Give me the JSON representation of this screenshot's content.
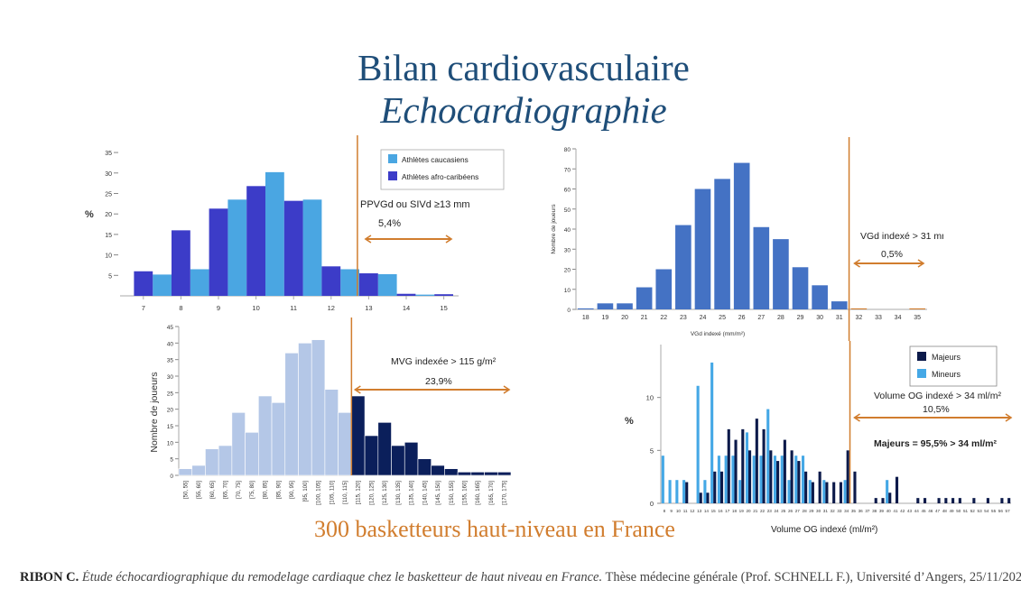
{
  "title": "Bilan cardiovasculaire",
  "title_italic": "Echocardiographie",
  "subtitle": "300 basketteurs haut-niveau en France",
  "footer": {
    "author": "RIBON C.",
    "work": "Étude échocardiographique du remodelage cardiaque chez le basketteur de haut niveau en France.",
    "rest": " Thèse médecine générale (Prof. SCHNELL F.), Université d’Angers, 25/11/202"
  },
  "colors": {
    "title": "#1f4e79",
    "accent": "#d17d2e",
    "threshold": "#d17d2e"
  },
  "chart_data": [
    {
      "id": "ppvgd",
      "type": "bar",
      "ylabel": "%",
      "ylim": [
        0,
        37
      ],
      "yticks": [
        5,
        10,
        15,
        20,
        25,
        30,
        35
      ],
      "xticks": [
        "7",
        "8",
        "9",
        "10",
        "11",
        "12",
        "13",
        "14",
        "15"
      ],
      "series": [
        {
          "name": "Athlètes caucasiens",
          "color": "#4aa6e2",
          "x": [
            7.5,
            8.5,
            9.5,
            10.5,
            11.5,
            12.5,
            13.5,
            14.5
          ],
          "values": [
            5.2,
            6.5,
            23.5,
            30.2,
            23.5,
            6.5,
            5.3,
            0.3
          ]
        },
        {
          "name": "Athlètes afro-caribéens",
          "color": "#3c3cc8",
          "x": [
            7,
            8,
            9,
            10,
            11,
            12,
            13,
            14,
            15
          ],
          "values": [
            6,
            16,
            21.3,
            26.8,
            23.2,
            7.2,
            5.5,
            0.5,
            0.4
          ]
        }
      ],
      "threshold_x": 12.7,
      "annotation": {
        "label": "PPVGd ou SIVd ≥13 mm",
        "value": "5,4%"
      },
      "legend": "top-right"
    },
    {
      "id": "vgd",
      "type": "bar",
      "ylabel": "Nombre de joueurs",
      "xlabel": "VGd indexé (mm/m²)",
      "ylim": [
        0,
        80
      ],
      "yticks": [
        0,
        10,
        20,
        30,
        40,
        50,
        60,
        70,
        80
      ],
      "categories": [
        "18",
        "19",
        "20",
        "21",
        "22",
        "23",
        "24",
        "25",
        "26",
        "27",
        "28",
        "29",
        "30",
        "31",
        "32",
        "33",
        "34",
        "35"
      ],
      "values": [
        0.5,
        3,
        3,
        11,
        20,
        42,
        60,
        65,
        73,
        41,
        35,
        21,
        12,
        4,
        0.5,
        0,
        0,
        0.5
      ],
      "color": "#4472c4",
      "threshold_after": "31",
      "annotation": {
        "label": "VGd indexé > 31 mm/m²",
        "value": "0,5%"
      }
    },
    {
      "id": "mvg",
      "type": "bar",
      "ylabel": "Nombre de joueurs",
      "ylim": [
        0,
        45
      ],
      "yticks": [
        0,
        5,
        10,
        15,
        20,
        25,
        30,
        35,
        40,
        45
      ],
      "categories": [
        "[50, 55]",
        "[55, 60]",
        "[60, 65]",
        "[65, 70]",
        "[70, 75]",
        "[75, 80]",
        "[80, 85]",
        "[85, 90]",
        "[90, 95]",
        "[95, 100]",
        "[100, 105]",
        "[105, 110]",
        "[110, 115]",
        "[115, 120]",
        "[120, 125]",
        "[125, 130]",
        "[130, 135]",
        "[135, 140]",
        "[140, 145]",
        "[145, 150]",
        "[150, 155]",
        "[155, 160]",
        "[160, 165]",
        "[165, 170]",
        "[170, 175]"
      ],
      "values": [
        2,
        3,
        8,
        9,
        19,
        13,
        24,
        22,
        37,
        40,
        41,
        26,
        19,
        24,
        12,
        16,
        9,
        10,
        5,
        3,
        2,
        1,
        1,
        1,
        1
      ],
      "color_below": "#b4c7e7",
      "color_above": "#0b1f5b",
      "threshold_after": "[110, 115]",
      "annotation": {
        "label": "MVG indexée > 115 g/m²",
        "value": "23,9%"
      }
    },
    {
      "id": "og",
      "type": "bar",
      "ylabel": "%",
      "xlabel": "Volume OG indexé (ml/m²)",
      "ylim": [
        0,
        15
      ],
      "yticks": [
        0,
        5,
        10
      ],
      "categories": [
        "8",
        "9",
        "10",
        "11",
        "12",
        "13",
        "14",
        "15",
        "16",
        "17",
        "18",
        "19",
        "20",
        "21",
        "22",
        "23",
        "24",
        "25",
        "26",
        "27",
        "28",
        "29",
        "30",
        "31",
        "32",
        "33",
        "34",
        "35",
        "36",
        "37",
        "38",
        "39",
        "40",
        "41",
        "42",
        "43",
        "44",
        "45",
        "46",
        "47",
        "48",
        "49",
        "50",
        "51",
        "52",
        "53",
        "54",
        "55",
        "56",
        "57"
      ],
      "series": [
        {
          "name": "Majeurs",
          "color": "#0c1a4a",
          "values": [
            0,
            0,
            0,
            2,
            0,
            1,
            1,
            3,
            3,
            7,
            6,
            7,
            5,
            8,
            7,
            5,
            4,
            6,
            5,
            4,
            3,
            2,
            3,
            2,
            2,
            2,
            5,
            3,
            0,
            0,
            0.5,
            0.5,
            1,
            2.5,
            0,
            0,
            0.5,
            0.5,
            0,
            0.5,
            0.5,
            0.5,
            0.5,
            0,
            0.5,
            0,
            0.5,
            0,
            0.5,
            0.5
          ]
        },
        {
          "name": "Mineurs",
          "color": "#45a8e6",
          "values": [
            4.5,
            2.2,
            2.2,
            2.2,
            0,
            11.1,
            2.2,
            13.3,
            4.5,
            4.5,
            4.5,
            2.2,
            6.7,
            4.5,
            4.5,
            8.9,
            4.5,
            4.5,
            2.2,
            4.5,
            4.5,
            2.2,
            0,
            2.2,
            0,
            0,
            2.2,
            0,
            0,
            0,
            0,
            0,
            2.2,
            0,
            0,
            0,
            0,
            0,
            0,
            0,
            0,
            0,
            0,
            0,
            0,
            0,
            0,
            0,
            0,
            0
          ]
        }
      ],
      "threshold_after": "34",
      "annotation": {
        "label": "Volume OG indexé > 34 ml/m²",
        "value": "10,5%",
        "note": "Majeurs = 95,5% > 34 ml/m²"
      },
      "legend": "top-right"
    }
  ]
}
